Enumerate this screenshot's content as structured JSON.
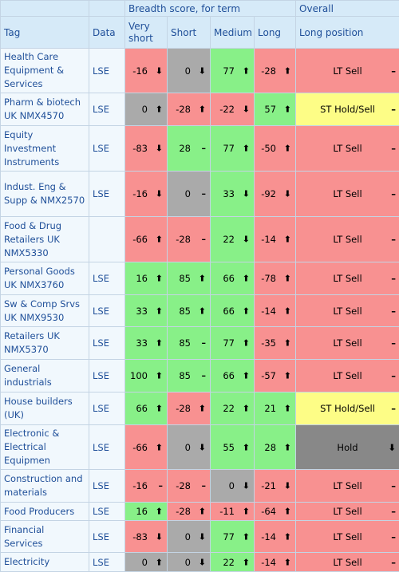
{
  "header": {
    "group_label": "Breadth score, for term",
    "overall_label": "Overall",
    "tag": "Tag",
    "data": "Data",
    "very_short": "Very short",
    "short": "Short",
    "medium": "Medium",
    "long": "Long",
    "long_position": "Long position"
  },
  "colors": {
    "red": "#f89191",
    "green": "#88f088",
    "grey": "#aaaaaa",
    "yellow": "#fdfd86",
    "dark_grey": "#888888"
  },
  "rows": [
    {
      "tag": "Health Care Equipment & Services",
      "data": "LSE",
      "h": 56,
      "cells": [
        {
          "v": "-16",
          "d": "⬇",
          "c": "red"
        },
        {
          "v": "0",
          "d": "⬇",
          "c": "grey"
        },
        {
          "v": "77",
          "d": "⬆",
          "c": "green"
        },
        {
          "v": "-28",
          "d": "⬆",
          "c": "red"
        }
      ],
      "pos": "LT Sell",
      "pdir": "–",
      "pc": "red"
    },
    {
      "tag": "Pharm & biotech UK NMX4570",
      "data": "LSE",
      "h": 41,
      "cells": [
        {
          "v": "0",
          "d": "⬆",
          "c": "grey"
        },
        {
          "v": "-28",
          "d": "⬆",
          "c": "red"
        },
        {
          "v": "-22",
          "d": "⬇",
          "c": "red"
        },
        {
          "v": "57",
          "d": "⬆",
          "c": "green"
        }
      ],
      "pos": "ST Hold/Sell",
      "pdir": "–",
      "pc": "yellow"
    },
    {
      "tag": "Equity Investment Instruments",
      "data": "LSE",
      "h": 57,
      "cells": [
        {
          "v": "-83",
          "d": "⬇",
          "c": "red"
        },
        {
          "v": "28",
          "d": "–",
          "c": "green"
        },
        {
          "v": "77",
          "d": "⬆",
          "c": "green"
        },
        {
          "v": "-50",
          "d": "⬆",
          "c": "red"
        }
      ],
      "pos": "LT Sell",
      "pdir": "–",
      "pc": "red"
    },
    {
      "tag": "Indust. Eng & Supp & NMX2570",
      "data": "LSE",
      "h": 57,
      "cells": [
        {
          "v": "-16",
          "d": "⬇",
          "c": "red"
        },
        {
          "v": "0",
          "d": "–",
          "c": "grey"
        },
        {
          "v": "33",
          "d": "⬇",
          "c": "green"
        },
        {
          "v": "-92",
          "d": "⬇",
          "c": "red"
        }
      ],
      "pos": "LT Sell",
      "pdir": "–",
      "pc": "red"
    },
    {
      "tag": "Food & Drug Retailers UK NMX5330",
      "data": "",
      "h": 57,
      "cells": [
        {
          "v": "-66",
          "d": "⬆",
          "c": "red"
        },
        {
          "v": "-28",
          "d": "–",
          "c": "red"
        },
        {
          "v": "22",
          "d": "⬇",
          "c": "green"
        },
        {
          "v": "-14",
          "d": "⬆",
          "c": "red"
        }
      ],
      "pos": "LT Sell",
      "pdir": "–",
      "pc": "red"
    },
    {
      "tag": "Personal Goods UK NMX3760",
      "data": "LSE",
      "h": 41,
      "cells": [
        {
          "v": "16",
          "d": "⬆",
          "c": "green"
        },
        {
          "v": "85",
          "d": "⬆",
          "c": "green"
        },
        {
          "v": "66",
          "d": "⬆",
          "c": "green"
        },
        {
          "v": "-78",
          "d": "⬆",
          "c": "red"
        }
      ],
      "pos": "LT Sell",
      "pdir": "–",
      "pc": "red"
    },
    {
      "tag": "Sw & Comp Srvs UK NMX9530",
      "data": "LSE",
      "h": 40,
      "cells": [
        {
          "v": "33",
          "d": "⬆",
          "c": "green"
        },
        {
          "v": "85",
          "d": "⬆",
          "c": "green"
        },
        {
          "v": "66",
          "d": "⬆",
          "c": "green"
        },
        {
          "v": "-14",
          "d": "⬆",
          "c": "red"
        }
      ],
      "pos": "LT Sell",
      "pdir": "–",
      "pc": "red"
    },
    {
      "tag": "Retailers UK NMX5370",
      "data": "LSE",
      "h": 41,
      "cells": [
        {
          "v": "33",
          "d": "⬆",
          "c": "green"
        },
        {
          "v": "85",
          "d": "–",
          "c": "green"
        },
        {
          "v": "77",
          "d": "⬆",
          "c": "green"
        },
        {
          "v": "-35",
          "d": "⬆",
          "c": "red"
        }
      ],
      "pos": "LT Sell",
      "pdir": "–",
      "pc": "red"
    },
    {
      "tag": "General industrials",
      "data": "LSE",
      "h": 41,
      "cells": [
        {
          "v": "100",
          "d": "⬆",
          "c": "green"
        },
        {
          "v": "85",
          "d": "–",
          "c": "green"
        },
        {
          "v": "66",
          "d": "⬆",
          "c": "green"
        },
        {
          "v": "-57",
          "d": "⬆",
          "c": "red"
        }
      ],
      "pos": "LT Sell",
      "pdir": "–",
      "pc": "red"
    },
    {
      "tag": "House builders (UK)",
      "data": "LSE",
      "h": 41,
      "cells": [
        {
          "v": "66",
          "d": "⬆",
          "c": "green"
        },
        {
          "v": "-28",
          "d": "⬆",
          "c": "red"
        },
        {
          "v": "22",
          "d": "⬆",
          "c": "green"
        },
        {
          "v": "21",
          "d": "⬆",
          "c": "green"
        }
      ],
      "pos": "ST Hold/Sell",
      "pdir": "–",
      "pc": "yellow"
    },
    {
      "tag": "Electronic & Electrical Equipmen",
      "data": "LSE",
      "h": 56,
      "cells": [
        {
          "v": "-66",
          "d": "⬆",
          "c": "red"
        },
        {
          "v": "0",
          "d": "⬇",
          "c": "grey"
        },
        {
          "v": "55",
          "d": "⬆",
          "c": "green"
        },
        {
          "v": "28",
          "d": "⬆",
          "c": "green"
        }
      ],
      "pos": "Hold",
      "pdir": "⬇",
      "pc": "dgrey"
    },
    {
      "tag": "Construction and materials",
      "data": "LSE",
      "h": 41,
      "cells": [
        {
          "v": "-16",
          "d": "–",
          "c": "red"
        },
        {
          "v": "-28",
          "d": "–",
          "c": "red"
        },
        {
          "v": "0",
          "d": "⬇",
          "c": "grey"
        },
        {
          "v": "-21",
          "d": "⬇",
          "c": "red"
        }
      ],
      "pos": "LT Sell",
      "pdir": "–",
      "pc": "red"
    },
    {
      "tag": "Food Producers",
      "data": "LSE",
      "h": 23,
      "cells": [
        {
          "v": "16",
          "d": "⬆",
          "c": "green"
        },
        {
          "v": "-28",
          "d": "⬆",
          "c": "red"
        },
        {
          "v": "-11",
          "d": "⬆",
          "c": "red"
        },
        {
          "v": "-64",
          "d": "⬆",
          "c": "red"
        }
      ],
      "pos": "LT Sell",
      "pdir": "–",
      "pc": "red"
    },
    {
      "tag": "Financial Services",
      "data": "LSE",
      "h": 40,
      "cells": [
        {
          "v": "-83",
          "d": "⬇",
          "c": "red"
        },
        {
          "v": "0",
          "d": "⬇",
          "c": "grey"
        },
        {
          "v": "77",
          "d": "⬆",
          "c": "green"
        },
        {
          "v": "-14",
          "d": "⬆",
          "c": "red"
        }
      ],
      "pos": "LT Sell",
      "pdir": "–",
      "pc": "red"
    },
    {
      "tag": "Electricity",
      "data": "LSE",
      "h": 24,
      "cells": [
        {
          "v": "0",
          "d": "⬆",
          "c": "grey"
        },
        {
          "v": "0",
          "d": "⬇",
          "c": "grey"
        },
        {
          "v": "22",
          "d": "⬆",
          "c": "green"
        },
        {
          "v": "-14",
          "d": "⬆",
          "c": "red"
        }
      ],
      "pos": "LT Sell",
      "pdir": "–",
      "pc": "red"
    }
  ]
}
